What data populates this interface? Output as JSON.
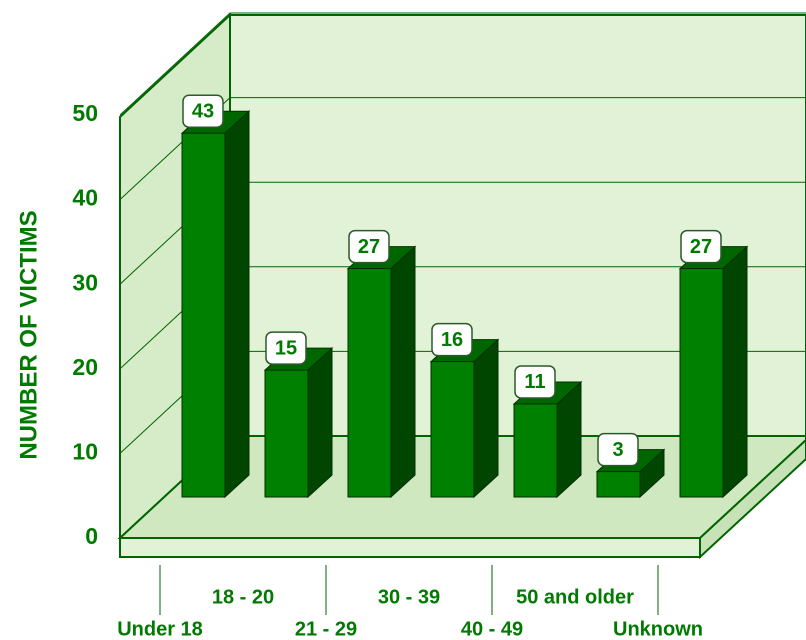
{
  "chart_data": {
    "type": "bar3d",
    "y_label": "NUMBER OF VICTIMS",
    "categories": [
      "Under 18",
      "18 - 20",
      "21 - 29",
      "30 - 39",
      "40 - 49",
      "50 and older",
      "Unknown"
    ],
    "values": [
      43,
      15,
      27,
      16,
      11,
      3,
      27
    ],
    "color": "#008000",
    "ylim": [
      0,
      50
    ],
    "yticks": [
      0,
      10,
      20,
      30,
      40,
      50
    ],
    "grid": true
  }
}
